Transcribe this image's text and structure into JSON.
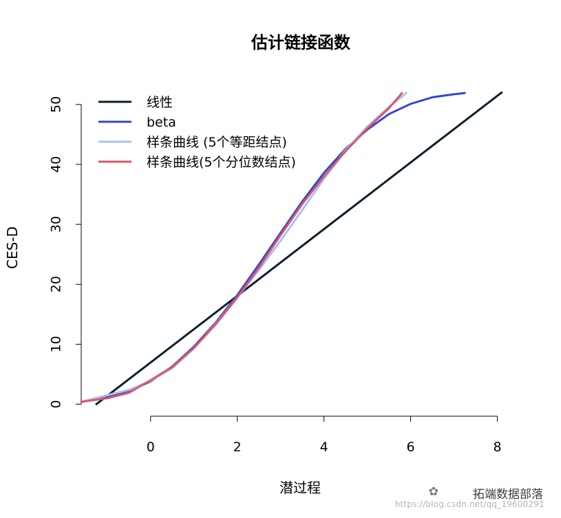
{
  "chart_data": {
    "type": "line",
    "title": "估计链接函数",
    "xlabel": "潜过程",
    "ylabel": "CES-D",
    "xlim": [
      -1.6,
      8.5
    ],
    "ylim": [
      -2,
      54
    ],
    "x_ticks": [
      0,
      2,
      4,
      6,
      8
    ],
    "y_ticks": [
      0,
      10,
      20,
      30,
      40,
      50
    ],
    "legend_position": "top-left",
    "grid": false,
    "series": [
      {
        "name": "线性",
        "color": "#0b1e2b",
        "points": [
          [
            -1.25,
            0
          ],
          [
            8.1,
            52
          ]
        ]
      },
      {
        "name": "beta",
        "color": "#2f47d4",
        "points": [
          [
            -1.6,
            0.4
          ],
          [
            -1.0,
            1.2
          ],
          [
            -0.5,
            2.2
          ],
          [
            0,
            3.8
          ],
          [
            0.5,
            6.3
          ],
          [
            1.0,
            9.6
          ],
          [
            1.5,
            13.6
          ],
          [
            2.0,
            18.2
          ],
          [
            2.5,
            23.3
          ],
          [
            3.0,
            28.6
          ],
          [
            3.5,
            33.8
          ],
          [
            4.0,
            38.6
          ],
          [
            4.5,
            42.6
          ],
          [
            5.0,
            45.8
          ],
          [
            5.5,
            48.4
          ],
          [
            6.0,
            50.1
          ],
          [
            6.5,
            51.2
          ],
          [
            7.0,
            51.7
          ],
          [
            7.25,
            51.9
          ]
        ]
      },
      {
        "name": "样条曲线 (5个等距结点)",
        "color": "#a9c0f2",
        "points": [
          [
            -1.6,
            0.4
          ],
          [
            -1.0,
            1.5
          ],
          [
            -0.5,
            2.4
          ],
          [
            0,
            3.9
          ],
          [
            0.5,
            6.0
          ],
          [
            1.0,
            9.3
          ],
          [
            1.5,
            13.4
          ],
          [
            2.0,
            17.8
          ],
          [
            2.5,
            22.4
          ],
          [
            3.0,
            27.3
          ],
          [
            3.5,
            32.4
          ],
          [
            4.0,
            37.6
          ],
          [
            4.5,
            42.4
          ],
          [
            5.0,
            46.3
          ],
          [
            5.5,
            49.6
          ],
          [
            5.9,
            51.9
          ]
        ]
      },
      {
        "name": "样条曲线(5个分位数结点)",
        "color": "#dd5468",
        "points": [
          [
            -1.6,
            0.4
          ],
          [
            -1.0,
            1.0
          ],
          [
            -0.5,
            1.9
          ],
          [
            0,
            4.0
          ],
          [
            0.5,
            6.2
          ],
          [
            1.0,
            9.4
          ],
          [
            1.5,
            13.3
          ],
          [
            2.0,
            17.8
          ],
          [
            2.5,
            22.8
          ],
          [
            3.0,
            28.2
          ],
          [
            3.5,
            33.4
          ],
          [
            4.0,
            38.0
          ],
          [
            4.5,
            42.2
          ],
          [
            5.0,
            46.0
          ],
          [
            5.5,
            49.4
          ],
          [
            5.8,
            51.9
          ]
        ]
      }
    ]
  },
  "watermark": {
    "brand": "拓端数据部落",
    "url": "https://blog.csdn.net/qq_19600291",
    "icon": "wechat-icon"
  }
}
